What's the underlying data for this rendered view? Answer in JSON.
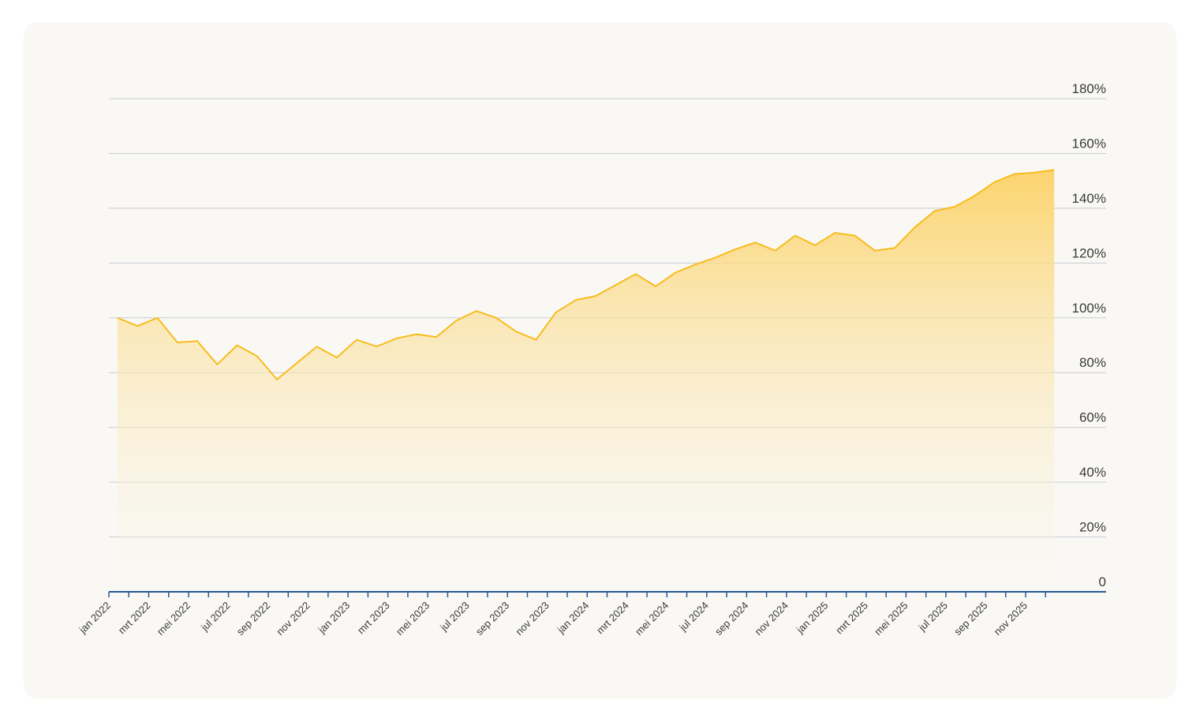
{
  "colors": {
    "line": "#f8bc1e",
    "fill_top": "#fcd46e",
    "fill_bottom": "#f9f8f4",
    "grid": "#c9cbd6",
    "axis": "#2b5a91",
    "background": "#f9f8f4"
  },
  "chart_data": {
    "type": "area",
    "title": "",
    "xlabel": "",
    "ylabel": "",
    "ylim": [
      0,
      180
    ],
    "y_ticks": [
      0,
      20,
      40,
      60,
      80,
      100,
      120,
      140,
      160,
      180
    ],
    "y_tick_labels": [
      "0",
      "20%",
      "40%",
      "60%",
      "80%",
      "100%",
      "120%",
      "140%",
      "160%",
      "180%"
    ],
    "y_axis_position": "right",
    "grid": true,
    "legend": "none",
    "x_tick_labels": [
      "jan 2022",
      "mrt 2022",
      "mei 2022",
      "jul 2022",
      "sep 2022",
      "nov 2022",
      "jan 2023",
      "mrt 2023",
      "mei 2023",
      "jul 2023",
      "sep 2023",
      "nov 2023",
      "jan 2024",
      "mrt 2024",
      "mei 2024",
      "jul 2024",
      "sep 2024",
      "nov 2024",
      "jan 2025",
      "mrt 2025",
      "mei 2025",
      "jul 2025",
      "sep 2025",
      "nov 2025"
    ],
    "x": [
      "jan 2022",
      "feb 2022",
      "mrt 2022",
      "apr 2022",
      "mei 2022",
      "jun 2022",
      "jul 2022",
      "aug 2022",
      "sep 2022",
      "okt 2022",
      "nov 2022",
      "dec 2022",
      "jan 2023",
      "feb 2023",
      "mrt 2023",
      "apr 2023",
      "mei 2023",
      "jun 2023",
      "jul 2023",
      "aug 2023",
      "sep 2023",
      "okt 2023",
      "nov 2023",
      "dec 2023",
      "jan 2024",
      "feb 2024",
      "mrt 2024",
      "apr 2024",
      "mei 2024",
      "jun 2024",
      "jul 2024",
      "aug 2024",
      "sep 2024",
      "okt 2024",
      "nov 2024",
      "dec 2024",
      "jan 2025",
      "feb 2025",
      "mrt 2025",
      "apr 2025",
      "mei 2025",
      "jun 2025",
      "jul 2025",
      "aug 2025",
      "sep 2025",
      "okt 2025",
      "nov 2025",
      "dec 2025"
    ],
    "series": [
      {
        "values": [
          100,
          97,
          100,
          91,
          91.5,
          83,
          90,
          86,
          77.5,
          83.5,
          89.5,
          85.5,
          92,
          89.5,
          92.5,
          94,
          93,
          99,
          102.5,
          100,
          95,
          92,
          102,
          106.5,
          108,
          112,
          116,
          111.5,
          116.5,
          119.5,
          122,
          125,
          127.5,
          124.5,
          130,
          126.5,
          131,
          130,
          124.5,
          125.5,
          133,
          139,
          140.5,
          144.5,
          149.5,
          152.5,
          153,
          154
        ]
      }
    ]
  }
}
